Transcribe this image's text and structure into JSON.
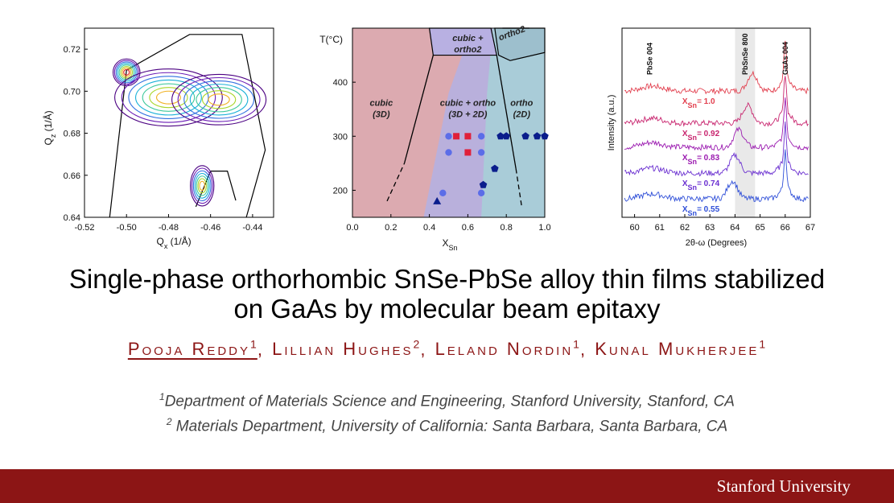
{
  "title_line1": "Single-phase orthorhombic SnSe-PbSe alloy thin films stabilized",
  "title_line2": "on GaAs by molecular beam epitaxy",
  "authors": [
    {
      "name": "Pooja Reddy",
      "sup": "1"
    },
    {
      "name": "Lillian Hughes",
      "sup": "2"
    },
    {
      "name": "Leland Nordin",
      "sup": "1"
    },
    {
      "name": "Kunal Mukherjee",
      "sup": "1"
    }
  ],
  "author_separator": ",",
  "affiliations": [
    {
      "sup": "1",
      "text": "Department of Materials Science and Engineering, Stanford University, Stanford, CA"
    },
    {
      "sup": "2",
      "text": " Materials Department, University of California: Santa Barbara, Santa Barbara, CA"
    }
  ],
  "footer_logo": "Stanford University",
  "colors": {
    "cardinal": "#8c1515",
    "cubic_region": "#dcaab0",
    "mixed_region": "#b9b0dc",
    "ortho_region": "#a9ccd8"
  },
  "chart_data": [
    {
      "type": "contour",
      "xlabel": "Q",
      "xlabel_sub": "x",
      "xlabel_unit": " (1/Å)",
      "ylabel": "Q",
      "ylabel_sub": "z",
      "ylabel_unit": " (1/Å)",
      "xlim": [
        -0.52,
        -0.43
      ],
      "ylim": [
        0.64,
        0.73
      ],
      "xticks": [
        -0.52,
        -0.5,
        -0.48,
        -0.46,
        -0.44
      ],
      "xtick_labels": [
        "-0.52",
        "-0.50",
        "-0.48",
        "-0.46",
        "-0.44"
      ],
      "yticks": [
        0.64,
        0.66,
        0.68,
        0.7,
        0.72
      ],
      "ytick_labels": [
        "0.64",
        "0.66",
        "0.68",
        "0.70",
        "0.72"
      ],
      "peaks": [
        {
          "x": -0.5,
          "y": 0.709,
          "rx": 0.004,
          "ry": 0.004
        },
        {
          "x": -0.48,
          "y": 0.697,
          "rx": 0.016,
          "ry": 0.0085
        },
        {
          "x": -0.456,
          "y": 0.696,
          "rx": 0.014,
          "ry": 0.0075
        },
        {
          "x": -0.464,
          "y": 0.655,
          "rx": 0.0035,
          "ry": 0.006
        }
      ],
      "triangle_outline": [
        [
          -0.508,
          0.64
        ],
        [
          -0.5,
          0.71
        ],
        [
          -0.47,
          0.727
        ],
        [
          -0.445,
          0.727
        ],
        [
          -0.434,
          0.672
        ],
        [
          -0.443,
          0.64
        ]
      ],
      "small_triangle": [
        [
          -0.467,
          0.645
        ],
        [
          -0.46,
          0.662
        ],
        [
          -0.452,
          0.662
        ],
        [
          -0.448,
          0.648
        ]
      ]
    },
    {
      "type": "phase-diagram",
      "ylabel": "T(°C)",
      "xlabel": "X",
      "xlabel_sub": "Sn",
      "xlim": [
        0,
        1
      ],
      "ylim": [
        150,
        500
      ],
      "xticks": [
        0,
        0.2,
        0.4,
        0.6,
        0.8,
        1.0
      ],
      "xtick_labels": [
        "0.0",
        "0.2",
        "0.4",
        "0.6",
        "0.8",
        "1.0"
      ],
      "yticks": [
        200,
        300,
        400
      ],
      "ytick_labels": [
        "200",
        "300",
        "400"
      ],
      "regions": [
        {
          "label1": "cubic",
          "label2": "(3D)",
          "x": 0.15,
          "y": 350
        },
        {
          "label1": "cubic + ortho",
          "label2": "(3D + 2D)",
          "x": 0.6,
          "y": 350
        },
        {
          "label1": "ortho",
          "label2": "(2D)",
          "x": 0.88,
          "y": 350
        },
        {
          "label1": "cubic +",
          "label2": "ortho2",
          "x": 0.6,
          "y": 470
        },
        {
          "label1": "ortho2",
          "label2": "",
          "x": 0.84,
          "y": 480
        }
      ],
      "points": {
        "blue_circles": [
          [
            0.5,
            300
          ],
          [
            0.67,
            300
          ],
          [
            0.5,
            270
          ],
          [
            0.67,
            270
          ],
          [
            0.47,
            195
          ],
          [
            0.67,
            195
          ]
        ],
        "red_squares": [
          [
            0.54,
            300
          ],
          [
            0.6,
            300
          ],
          [
            0.6,
            270
          ]
        ],
        "navy_pentagons": [
          [
            0.77,
            300
          ],
          [
            0.8,
            300
          ],
          [
            0.9,
            300
          ],
          [
            0.96,
            300
          ],
          [
            1.0,
            300
          ],
          [
            0.74,
            240
          ],
          [
            0.68,
            210
          ]
        ],
        "navy_triangles": [
          [
            0.44,
            180
          ]
        ]
      }
    },
    {
      "type": "line",
      "xlabel": "2θ-ω (Degrees)",
      "ylabel": "Intensity (a.u.)",
      "xlim": [
        59.5,
        67
      ],
      "xticks": [
        60,
        61,
        62,
        63,
        64,
        65,
        66,
        67
      ],
      "xtick_labels": [
        "60",
        "61",
        "62",
        "63",
        "64",
        "65",
        "66",
        "67"
      ],
      "peak_labels": [
        {
          "label": "PbSe 004",
          "x": 60.6
        },
        {
          "label": "PbSnSe 800",
          "x": 64.4
        },
        {
          "label": "GaAs 004",
          "x": 66.0
        }
      ],
      "shaded_band": [
        64.0,
        64.8
      ],
      "series": [
        {
          "name": "X",
          "sub": "Sn",
          "value": "= 1.0",
          "color": "#e2404f",
          "film_peak": 64.7
        },
        {
          "name": "X",
          "sub": "Sn",
          "value": "= 0.92",
          "color": "#c8246e",
          "film_peak": 64.5
        },
        {
          "name": "X",
          "sub": "Sn",
          "value": "= 0.83",
          "color": "#9b1ab0",
          "film_peak": 64.15
        },
        {
          "name": "X",
          "sub": "Sn",
          "value": "= 0.74",
          "color": "#6a2fd0",
          "film_peak": 64.0
        },
        {
          "name": "X",
          "sub": "Sn",
          "value": "= 0.55",
          "color": "#2f4fd8",
          "film_peak": 63.9
        }
      ]
    }
  ]
}
